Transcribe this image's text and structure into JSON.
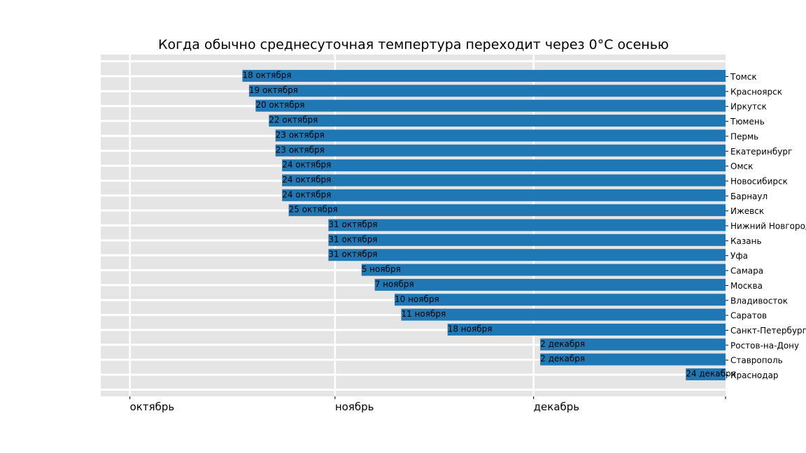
{
  "chart_data": {
    "type": "bar",
    "orientation": "horizontal",
    "title": "Когда обычно среднесуточная темпертура переходит через 0°C осенью",
    "x_axis": {
      "ticks": [
        {
          "label": "октябрь",
          "day": 1
        },
        {
          "label": "ноябрь",
          "day": 32
        },
        {
          "label": "декабрь",
          "day": 62
        }
      ],
      "xlim": [
        -3.4,
        91
      ]
    },
    "bar_end_day": 91,
    "bar_color": "#1f77b4",
    "background_color": "#e5e5e5",
    "grid": true,
    "categories": [
      {
        "city": "Томск",
        "day": 18,
        "label": "18 октября"
      },
      {
        "city": "Красноярск",
        "day": 19,
        "label": "19 октября"
      },
      {
        "city": "Иркутск",
        "day": 20,
        "label": "20 октября"
      },
      {
        "city": "Тюмень",
        "day": 22,
        "label": "22 октября"
      },
      {
        "city": "Пермь",
        "day": 23,
        "label": "23 октября"
      },
      {
        "city": "Екатеринбург",
        "day": 23,
        "label": "23 октября"
      },
      {
        "city": "Омск",
        "day": 24,
        "label": "24 октября"
      },
      {
        "city": "Новосибирск",
        "day": 24,
        "label": "24 октября"
      },
      {
        "city": "Барнаул",
        "day": 24,
        "label": "24 октября"
      },
      {
        "city": "Ижевск",
        "day": 25,
        "label": "25 октября"
      },
      {
        "city": "Нижний Новгород",
        "day": 31,
        "label": "31 октября"
      },
      {
        "city": "Казань",
        "day": 31,
        "label": "31 октября"
      },
      {
        "city": "Уфа",
        "day": 31,
        "label": "31 октября"
      },
      {
        "city": "Самара",
        "day": 36,
        "label": "5 ноября"
      },
      {
        "city": "Москва",
        "day": 38,
        "label": "7 ноября"
      },
      {
        "city": "Владивосток",
        "day": 41,
        "label": "10 ноября"
      },
      {
        "city": "Саратов",
        "day": 42,
        "label": "11 ноября"
      },
      {
        "city": "Санкт-Петербург",
        "day": 49,
        "label": "18 ноября"
      },
      {
        "city": "Ростов-на-Дону",
        "day": 63,
        "label": "2 декабря"
      },
      {
        "city": "Ставрополь",
        "day": 63,
        "label": "2 декабря"
      },
      {
        "city": "Краснодар",
        "day": 85,
        "label": "24 декабря"
      }
    ]
  }
}
